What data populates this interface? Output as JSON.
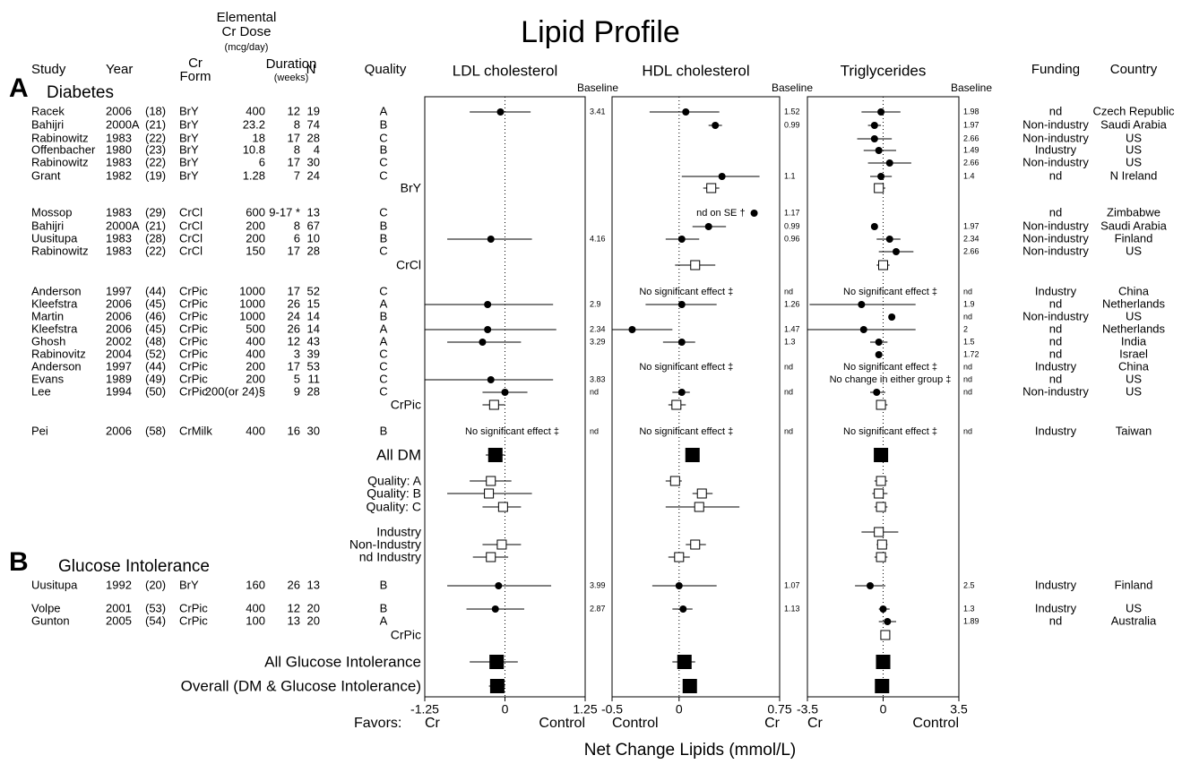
{
  "chart_data": {
    "type": "forest",
    "title": "Lipid Profile",
    "headers": {
      "study": "Study",
      "year": "Year",
      "form": [
        "Cr",
        "Form"
      ],
      "dose": [
        "Elemental",
        "Cr Dose",
        "(mcg/day)"
      ],
      "duration": [
        "Duration",
        "(weeks)"
      ],
      "n": "N",
      "quality": "Quality",
      "funding": "Funding",
      "country": "Country"
    },
    "panels": [
      {
        "name": "LDL cholesterol",
        "baseline_label": "Baseline",
        "xlim": [
          -1.25,
          1.25
        ],
        "xticks": [
          -1.25,
          0,
          1.25
        ],
        "favors": [
          "Cr",
          "Control"
        ]
      },
      {
        "name": "HDL cholesterol",
        "baseline_label": "Baseline",
        "xlim": [
          -0.5,
          0.75
        ],
        "xticks": [
          -0.5,
          0,
          0.75
        ],
        "favors": [
          "Control",
          "Cr"
        ]
      },
      {
        "name": "Triglycerides",
        "baseline_label": "Baseline",
        "xlim": [
          -3.5,
          3.5
        ],
        "xticks": [
          -3.5,
          0,
          3.5
        ],
        "favors": [
          "Cr",
          "Control"
        ]
      }
    ],
    "favors_label": "Favors:",
    "xlabel": "Net Change Lipids (mmol/L)",
    "sections": [
      {
        "letter": "A",
        "name": "Diabetes"
      },
      {
        "letter": "B",
        "name": "Glucose Intolerance"
      }
    ],
    "rows": [
      {
        "cells": [
          "Racek",
          "2006",
          "(18)",
          "BrY",
          "400",
          "12",
          "19",
          "A"
        ],
        "effects": [
          {
            "est": -0.07,
            "lo": -0.55,
            "hi": 0.4
          },
          {
            "est": 0.05,
            "lo": -0.22,
            "hi": 0.3
          },
          {
            "est": -0.1,
            "lo": -1.0,
            "hi": 0.8
          }
        ],
        "baselines": [
          3.41,
          1.52,
          1.98
        ],
        "funding": "nd",
        "country": "Czech Republic"
      },
      {
        "cells": [
          "Bahijri",
          "2000A",
          "(21)",
          "BrY",
          "23.2",
          "8",
          "74",
          "B"
        ],
        "effects": [
          null,
          {
            "est": 0.27,
            "lo": 0.22,
            "hi": 0.32
          },
          {
            "est": -0.4,
            "lo": -0.7,
            "hi": -0.1
          }
        ],
        "baselines": [
          null,
          0.99,
          1.97
        ],
        "funding": "Non-industry",
        "country": "Saudi Arabia"
      },
      {
        "cells": [
          "Rabinowitz",
          "1983",
          "(22)",
          "BrY",
          "18",
          "17",
          "28",
          "C"
        ],
        "effects": [
          null,
          null,
          {
            "est": -0.4,
            "lo": -1.2,
            "hi": 0.4
          }
        ],
        "baselines": [
          null,
          null,
          2.66
        ],
        "funding": "Non-industry",
        "country": "US"
      },
      {
        "cells": [
          "Offenbacher",
          "1980",
          "(23)",
          "BrY",
          "10.8",
          "8",
          "4",
          "B"
        ],
        "effects": [
          null,
          null,
          {
            "est": -0.2,
            "lo": -0.9,
            "hi": 0.6
          }
        ],
        "baselines": [
          null,
          null,
          1.49
        ],
        "funding": "Industry",
        "country": "US"
      },
      {
        "cells": [
          "Rabinowitz",
          "1983",
          "(22)",
          "BrY",
          "6",
          "17",
          "30",
          "C"
        ],
        "effects": [
          null,
          null,
          {
            "est": 0.3,
            "lo": -0.7,
            "hi": 1.3
          }
        ],
        "baselines": [
          null,
          null,
          2.66
        ],
        "funding": "Non-industry",
        "country": "US"
      },
      {
        "cells": [
          "Grant",
          "1982",
          "(19)",
          "BrY",
          "1.28",
          "7",
          "24",
          "C"
        ],
        "effects": [
          null,
          {
            "est": 0.32,
            "lo": 0.02,
            "hi": 0.6
          },
          {
            "est": -0.1,
            "lo": -0.6,
            "hi": 0.4
          }
        ],
        "baselines": [
          null,
          1.1,
          1.4
        ],
        "funding": "nd",
        "country": "N Ireland"
      },
      {
        "label": "BrY",
        "marker": "open-square",
        "effects": [
          null,
          {
            "est": 0.24,
            "lo": 0.18,
            "hi": 0.3
          },
          {
            "est": -0.2,
            "lo": -0.4,
            "hi": 0.1
          }
        ]
      },
      {
        "cells": [
          "Mossop",
          "1983",
          "(29)",
          "CrCl",
          "600",
          "9-17 *",
          "13",
          "C"
        ],
        "effects": [
          null,
          {
            "est": 0.56,
            "note": "nd on SE †"
          },
          null
        ],
        "baselines": [
          null,
          1.17,
          null
        ],
        "funding": "nd",
        "country": "Zimbabwe"
      },
      {
        "cells": [
          "Bahijri",
          "2000A",
          "(21)",
          "CrCl",
          "200",
          "8",
          "67",
          "B"
        ],
        "effects": [
          null,
          {
            "est": 0.22,
            "lo": 0.1,
            "hi": 0.35
          },
          {
            "est": -0.4
          }
        ],
        "baselines": [
          null,
          0.99,
          1.97
        ],
        "funding": "Non-industry",
        "country": "Saudi Arabia"
      },
      {
        "cells": [
          "Uusitupa",
          "1983",
          "(28)",
          "CrCl",
          "200",
          "6",
          "10",
          "B"
        ],
        "effects": [
          {
            "est": -0.22,
            "lo": -0.9,
            "hi": 0.42
          },
          {
            "est": 0.02,
            "lo": -0.1,
            "hi": 0.15
          },
          {
            "est": 0.3,
            "lo": -0.3,
            "hi": 0.8
          }
        ],
        "baselines": [
          4.16,
          0.96,
          2.34
        ],
        "funding": "Non-industry",
        "country": "Finland"
      },
      {
        "cells": [
          "Rabinowitz",
          "1983",
          "(22)",
          "CrCl",
          "150",
          "17",
          "28",
          "C"
        ],
        "effects": [
          null,
          null,
          {
            "est": 0.6,
            "lo": -0.2,
            "hi": 1.4
          }
        ],
        "baselines": [
          null,
          null,
          2.66
        ],
        "funding": "Non-industry",
        "country": "US"
      },
      {
        "label": "CrCl",
        "marker": "open-square",
        "effects": [
          null,
          {
            "est": 0.12,
            "lo": -0.03,
            "hi": 0.27
          },
          {
            "est": 0,
            "lo": -0.3,
            "hi": 0.3
          }
        ]
      },
      {
        "cells": [
          "Anderson",
          "1997",
          "(44)",
          "CrPic",
          "1000",
          "17",
          "52",
          "C"
        ],
        "effects": [
          null,
          {
            "note": "No significant effect ‡"
          },
          {
            "note": "No significant effect ‡"
          }
        ],
        "baselines": [
          null,
          "nd",
          "nd"
        ],
        "funding": "Industry",
        "country": "China"
      },
      {
        "cells": [
          "Kleefstra",
          "2006",
          "(45)",
          "CrPic",
          "1000",
          "26",
          "15",
          "A"
        ],
        "effects": [
          {
            "est": -0.27,
            "lo": -1.25,
            "hi": 0.75
          },
          {
            "est": 0.02,
            "lo": -0.25,
            "hi": 0.28
          },
          {
            "est": -1.0,
            "lo": -3.4,
            "hi": 1.5
          }
        ],
        "baselines": [
          2.9,
          1.26,
          1.9
        ],
        "funding": "nd",
        "country": "Netherlands"
      },
      {
        "cells": [
          "Martin",
          "2006",
          "(46)",
          "CrPic",
          "1000",
          "24",
          "14",
          "B"
        ],
        "effects": [
          null,
          null,
          {
            "est": 0.4
          }
        ],
        "baselines": [
          null,
          null,
          "nd"
        ],
        "funding": "Non-industry",
        "country": "US"
      },
      {
        "cells": [
          "Kleefstra",
          "2006",
          "(45)",
          "CrPic",
          "500",
          "26",
          "14",
          "A"
        ],
        "effects": [
          {
            "est": -0.27,
            "lo": -1.25,
            "hi": 0.8
          },
          {
            "est": -0.35,
            "lo": -0.5,
            "hi": -0.05
          },
          {
            "est": -0.9,
            "lo": -3.5,
            "hi": 1.5
          }
        ],
        "baselines": [
          2.34,
          1.47,
          2
        ],
        "funding": "nd",
        "country": "Netherlands"
      },
      {
        "cells": [
          "Ghosh",
          "2002",
          "(48)",
          "CrPic",
          "400",
          "12",
          "43",
          "A"
        ],
        "effects": [
          {
            "est": -0.35,
            "lo": -0.9,
            "hi": 0.25
          },
          {
            "est": 0.02,
            "lo": -0.12,
            "hi": 0.12
          },
          {
            "est": -0.2,
            "lo": -0.6,
            "hi": 0.2
          }
        ],
        "baselines": [
          3.29,
          1.3,
          1.5
        ],
        "funding": "nd",
        "country": "India"
      },
      {
        "cells": [
          "Rabinovitz",
          "2004",
          "(52)",
          "CrPic",
          "400",
          "3",
          "39",
          "C"
        ],
        "effects": [
          null,
          null,
          {
            "est": -0.2
          }
        ],
        "baselines": [
          null,
          null,
          1.72
        ],
        "funding": "nd",
        "country": "Israel"
      },
      {
        "cells": [
          "Anderson",
          "1997",
          "(44)",
          "CrPic",
          "200",
          "17",
          "53",
          "C"
        ],
        "effects": [
          null,
          {
            "note": "No significant effect ‡"
          },
          {
            "note": "No significant effect ‡"
          }
        ],
        "baselines": [
          null,
          "nd",
          "nd"
        ],
        "funding": "Industry",
        "country": "China"
      },
      {
        "cells": [
          "Evans",
          "1989",
          "(49)",
          "CrPic",
          "200",
          "5",
          "11",
          "C"
        ],
        "effects": [
          {
            "est": -0.22,
            "lo": -1.25,
            "hi": 0.75
          },
          null,
          {
            "note": "No change in either group ‡"
          }
        ],
        "baselines": [
          3.83,
          null,
          "nd"
        ],
        "funding": "nd",
        "country": "US"
      },
      {
        "cells": [
          "Lee",
          "1994",
          "(50)",
          "CrPic",
          "200(or 24)§",
          "9",
          "28",
          "C"
        ],
        "effects": [
          {
            "est": 0.0,
            "lo": -0.35,
            "hi": 0.35
          },
          {
            "est": 0.02,
            "lo": -0.05,
            "hi": 0.08
          },
          {
            "est": -0.3,
            "lo": -0.6,
            "hi": 0.1
          }
        ],
        "baselines": [
          "nd",
          "nd",
          "nd"
        ],
        "funding": "Non-industry",
        "country": "US"
      },
      {
        "label": "CrPic",
        "marker": "open-square",
        "effects": [
          {
            "est": -0.17,
            "lo": -0.35,
            "hi": 0.0
          },
          {
            "est": -0.02,
            "lo": -0.08,
            "hi": 0.05
          },
          {
            "est": -0.1,
            "lo": -0.3,
            "hi": 0.2
          }
        ]
      },
      {
        "cells": [
          "Pei",
          "2006",
          "(58)",
          "CrMilk",
          "400",
          "16",
          "30",
          "B"
        ],
        "effects": [
          {
            "note": "No significant effect ‡"
          },
          {
            "note": "No significant effect ‡"
          },
          {
            "note": "No significant effect ‡"
          }
        ],
        "baselines": [
          "nd",
          "nd",
          "nd"
        ],
        "funding": "Industry",
        "country": "Taiwan"
      },
      {
        "label": "All DM",
        "marker": "filled-square",
        "effects": [
          {
            "est": -0.15,
            "lo": -0.3,
            "hi": 0.0
          },
          {
            "est": 0.1,
            "lo": 0.05,
            "hi": 0.15
          },
          {
            "est": -0.1,
            "lo": -0.3,
            "hi": 0.1
          }
        ]
      },
      {
        "label": "Quality: A",
        "marker": "open-square",
        "effects": [
          {
            "est": -0.22,
            "lo": -0.55,
            "hi": 0.1
          },
          {
            "est": -0.03,
            "lo": -0.1,
            "hi": 0.02
          },
          {
            "est": -0.1,
            "lo": -0.4,
            "hi": 0.2
          }
        ]
      },
      {
        "label": "Quality: B",
        "marker": "open-square",
        "effects": [
          {
            "est": -0.25,
            "lo": -0.9,
            "hi": 0.42
          },
          {
            "est": 0.17,
            "lo": 0.1,
            "hi": 0.25
          },
          {
            "est": -0.2,
            "lo": -0.5,
            "hi": 0.2
          }
        ]
      },
      {
        "label": "Quality: C",
        "marker": "open-square",
        "effects": [
          {
            "est": -0.03,
            "lo": -0.35,
            "hi": 0.25
          },
          {
            "est": 0.15,
            "lo": -0.1,
            "hi": 0.45
          },
          {
            "est": -0.1,
            "lo": -0.4,
            "hi": 0.2
          }
        ]
      },
      {
        "label": "Industry",
        "marker": "open-square",
        "effects": [
          null,
          null,
          {
            "est": -0.2,
            "lo": -1.0,
            "hi": 0.7
          }
        ]
      },
      {
        "label": "Non-Industry",
        "marker": "open-square",
        "effects": [
          {
            "est": -0.05,
            "lo": -0.35,
            "hi": 0.25
          },
          {
            "est": 0.12,
            "lo": 0.05,
            "hi": 0.2
          },
          {
            "est": -0.05,
            "lo": -0.3,
            "hi": 0.2
          }
        ]
      },
      {
        "label": "nd Industry",
        "marker": "open-square",
        "effects": [
          {
            "est": -0.22,
            "lo": -0.5,
            "hi": 0.05
          },
          {
            "est": 0.0,
            "lo": -0.08,
            "hi": 0.08
          },
          {
            "est": -0.1,
            "lo": -0.4,
            "hi": 0.2
          }
        ]
      },
      {
        "cells": [
          "Uusitupa",
          "1992",
          "(20)",
          "BrY",
          "160",
          "26",
          "13",
          "B"
        ],
        "effects": [
          {
            "est": -0.1,
            "lo": -0.9,
            "hi": 0.72
          },
          {
            "est": 0.0,
            "lo": -0.2,
            "hi": 0.28
          },
          {
            "est": -0.6,
            "lo": -1.3,
            "hi": 0.1
          }
        ],
        "baselines": [
          3.99,
          1.07,
          2.5
        ],
        "funding": "Industry",
        "country": "Finland"
      },
      {
        "cells": [
          "Volpe",
          "2001",
          "(53)",
          "CrPic",
          "400",
          "12",
          "20",
          "B"
        ],
        "effects": [
          {
            "est": -0.15,
            "lo": -0.6,
            "hi": 0.3
          },
          {
            "est": 0.03,
            "lo": -0.05,
            "hi": 0.1
          },
          {
            "est": 0.0,
            "lo": -0.2,
            "hi": 0.3
          }
        ],
        "baselines": [
          2.87,
          1.13,
          1.3
        ],
        "funding": "Industry",
        "country": "US"
      },
      {
        "cells": [
          "Gunton",
          "2005",
          "(54)",
          "CrPic",
          "100",
          "13",
          "20",
          "A"
        ],
        "effects": [
          null,
          null,
          {
            "est": 0.2,
            "lo": -0.2,
            "hi": 0.6
          }
        ],
        "baselines": [
          null,
          null,
          1.89
        ],
        "funding": "nd",
        "country": "Australia"
      },
      {
        "label": "CrPic",
        "marker": "open-square",
        "effects": [
          null,
          null,
          {
            "est": 0.1,
            "lo": -0.1,
            "hi": 0.3
          }
        ]
      },
      {
        "label": "All Glucose Intolerance",
        "marker": "filled-square",
        "effects": [
          {
            "est": -0.13,
            "lo": -0.55,
            "hi": 0.2
          },
          {
            "est": 0.04,
            "lo": -0.05,
            "hi": 0.12
          },
          {
            "est": 0.0,
            "lo": -0.3,
            "hi": 0.3
          }
        ]
      },
      {
        "label": "Overall (DM & Glucose Intolerance)",
        "marker": "filled-square",
        "effects": [
          {
            "est": -0.12,
            "lo": -0.25,
            "hi": 0.0
          },
          {
            "est": 0.08,
            "lo": 0.03,
            "hi": 0.13
          },
          {
            "est": -0.05,
            "lo": -0.3,
            "hi": 0.15
          }
        ]
      }
    ]
  }
}
